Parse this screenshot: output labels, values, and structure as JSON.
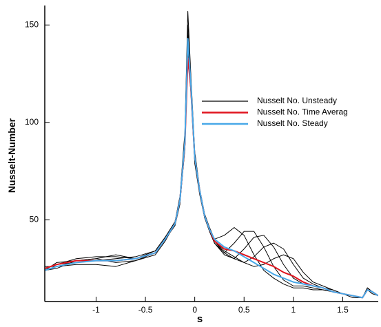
{
  "chart_data": {
    "type": "line",
    "x_label": "s",
    "y_label": "Nusselt-Number",
    "xlim": [
      -1.52,
      1.86
    ],
    "ylim": [
      8,
      160
    ],
    "xticks": [
      -1,
      -0.5,
      0,
      0.5,
      1,
      1.5
    ],
    "yticks": [
      50,
      100,
      150
    ],
    "legend": "right",
    "x": [
      -1.52,
      -1.4,
      -1.2,
      -1.0,
      -0.8,
      -0.6,
      -0.4,
      -0.3,
      -0.2,
      -0.15,
      -0.1,
      -0.07,
      -0.04,
      0,
      0.05,
      0.1,
      0.15,
      0.2,
      0.3,
      0.4,
      0.5,
      0.6,
      0.7,
      0.8,
      0.9,
      1.0,
      1.1,
      1.2,
      1.3,
      1.4,
      1.5,
      1.6,
      1.7,
      1.75,
      1.8,
      1.86
    ],
    "series": [
      {
        "name": "Nusselt No. Unsteady",
        "color": "#000000",
        "values": [
          25,
          27,
          30,
          31,
          31,
          30,
          34,
          41,
          49,
          62,
          95,
          157,
          125,
          85,
          66,
          53,
          46,
          40,
          42,
          46,
          42,
          32,
          24,
          20,
          17,
          15,
          15,
          14,
          14,
          13,
          12,
          11,
          10,
          15,
          13,
          11
        ]
      },
      {
        "color": "#000000",
        "values": [
          24,
          28,
          29,
          30,
          28,
          29,
          33,
          40,
          47,
          58,
          88,
          140,
          118,
          80,
          64,
          51,
          44,
          38,
          33,
          38,
          44,
          44,
          36,
          26,
          19,
          16,
          16,
          15,
          14,
          13,
          12,
          10,
          10,
          14,
          13,
          11
        ]
      },
      {
        "color": "#000000",
        "values": [
          26,
          26,
          27,
          27,
          26,
          29,
          32,
          39,
          48,
          61,
          92,
          150,
          122,
          83,
          65,
          52,
          44,
          38,
          32,
          30,
          35,
          41,
          42,
          36,
          27,
          20,
          17,
          16,
          15,
          13,
          12,
          11,
          10,
          15,
          13,
          11
        ]
      },
      {
        "color": "#000000",
        "values": [
          25,
          27,
          28,
          29,
          30,
          31,
          34,
          41,
          48,
          59,
          86,
          135,
          116,
          79,
          63,
          51,
          45,
          39,
          33,
          30,
          28,
          31,
          36,
          38,
          35,
          27,
          20,
          17,
          15,
          14,
          12,
          11,
          10,
          14,
          12,
          11
        ]
      },
      {
        "color": "#000000",
        "values": [
          24,
          25,
          29,
          30,
          32,
          30,
          33,
          40,
          49,
          60,
          90,
          145,
          120,
          82,
          65,
          52,
          45,
          39,
          34,
          31,
          28,
          26,
          27,
          30,
          32,
          30,
          23,
          18,
          16,
          14,
          12,
          11,
          10,
          15,
          13,
          11
        ]
      },
      {
        "name": "Nusselt No. Time Averag",
        "color": "#e0141e",
        "values": [
          25,
          27,
          29,
          29,
          29,
          30,
          33,
          40,
          48,
          60,
          89,
          133,
          118,
          82,
          65,
          52,
          45,
          39,
          35,
          34,
          32,
          30,
          28,
          26,
          23,
          21,
          18,
          16,
          15,
          13,
          12,
          11,
          10,
          14,
          13,
          11
        ]
      },
      {
        "name": "Nusselt No. Steady",
        "color": "#48a8e8",
        "values": [
          24,
          26,
          28,
          29,
          29,
          30,
          33,
          40,
          48,
          60,
          90,
          143,
          120,
          82,
          65,
          52,
          45,
          40,
          36,
          34,
          31,
          28,
          25,
          22,
          20,
          18,
          17,
          16,
          15,
          13,
          12,
          11,
          10,
          14,
          13,
          11
        ]
      }
    ]
  }
}
